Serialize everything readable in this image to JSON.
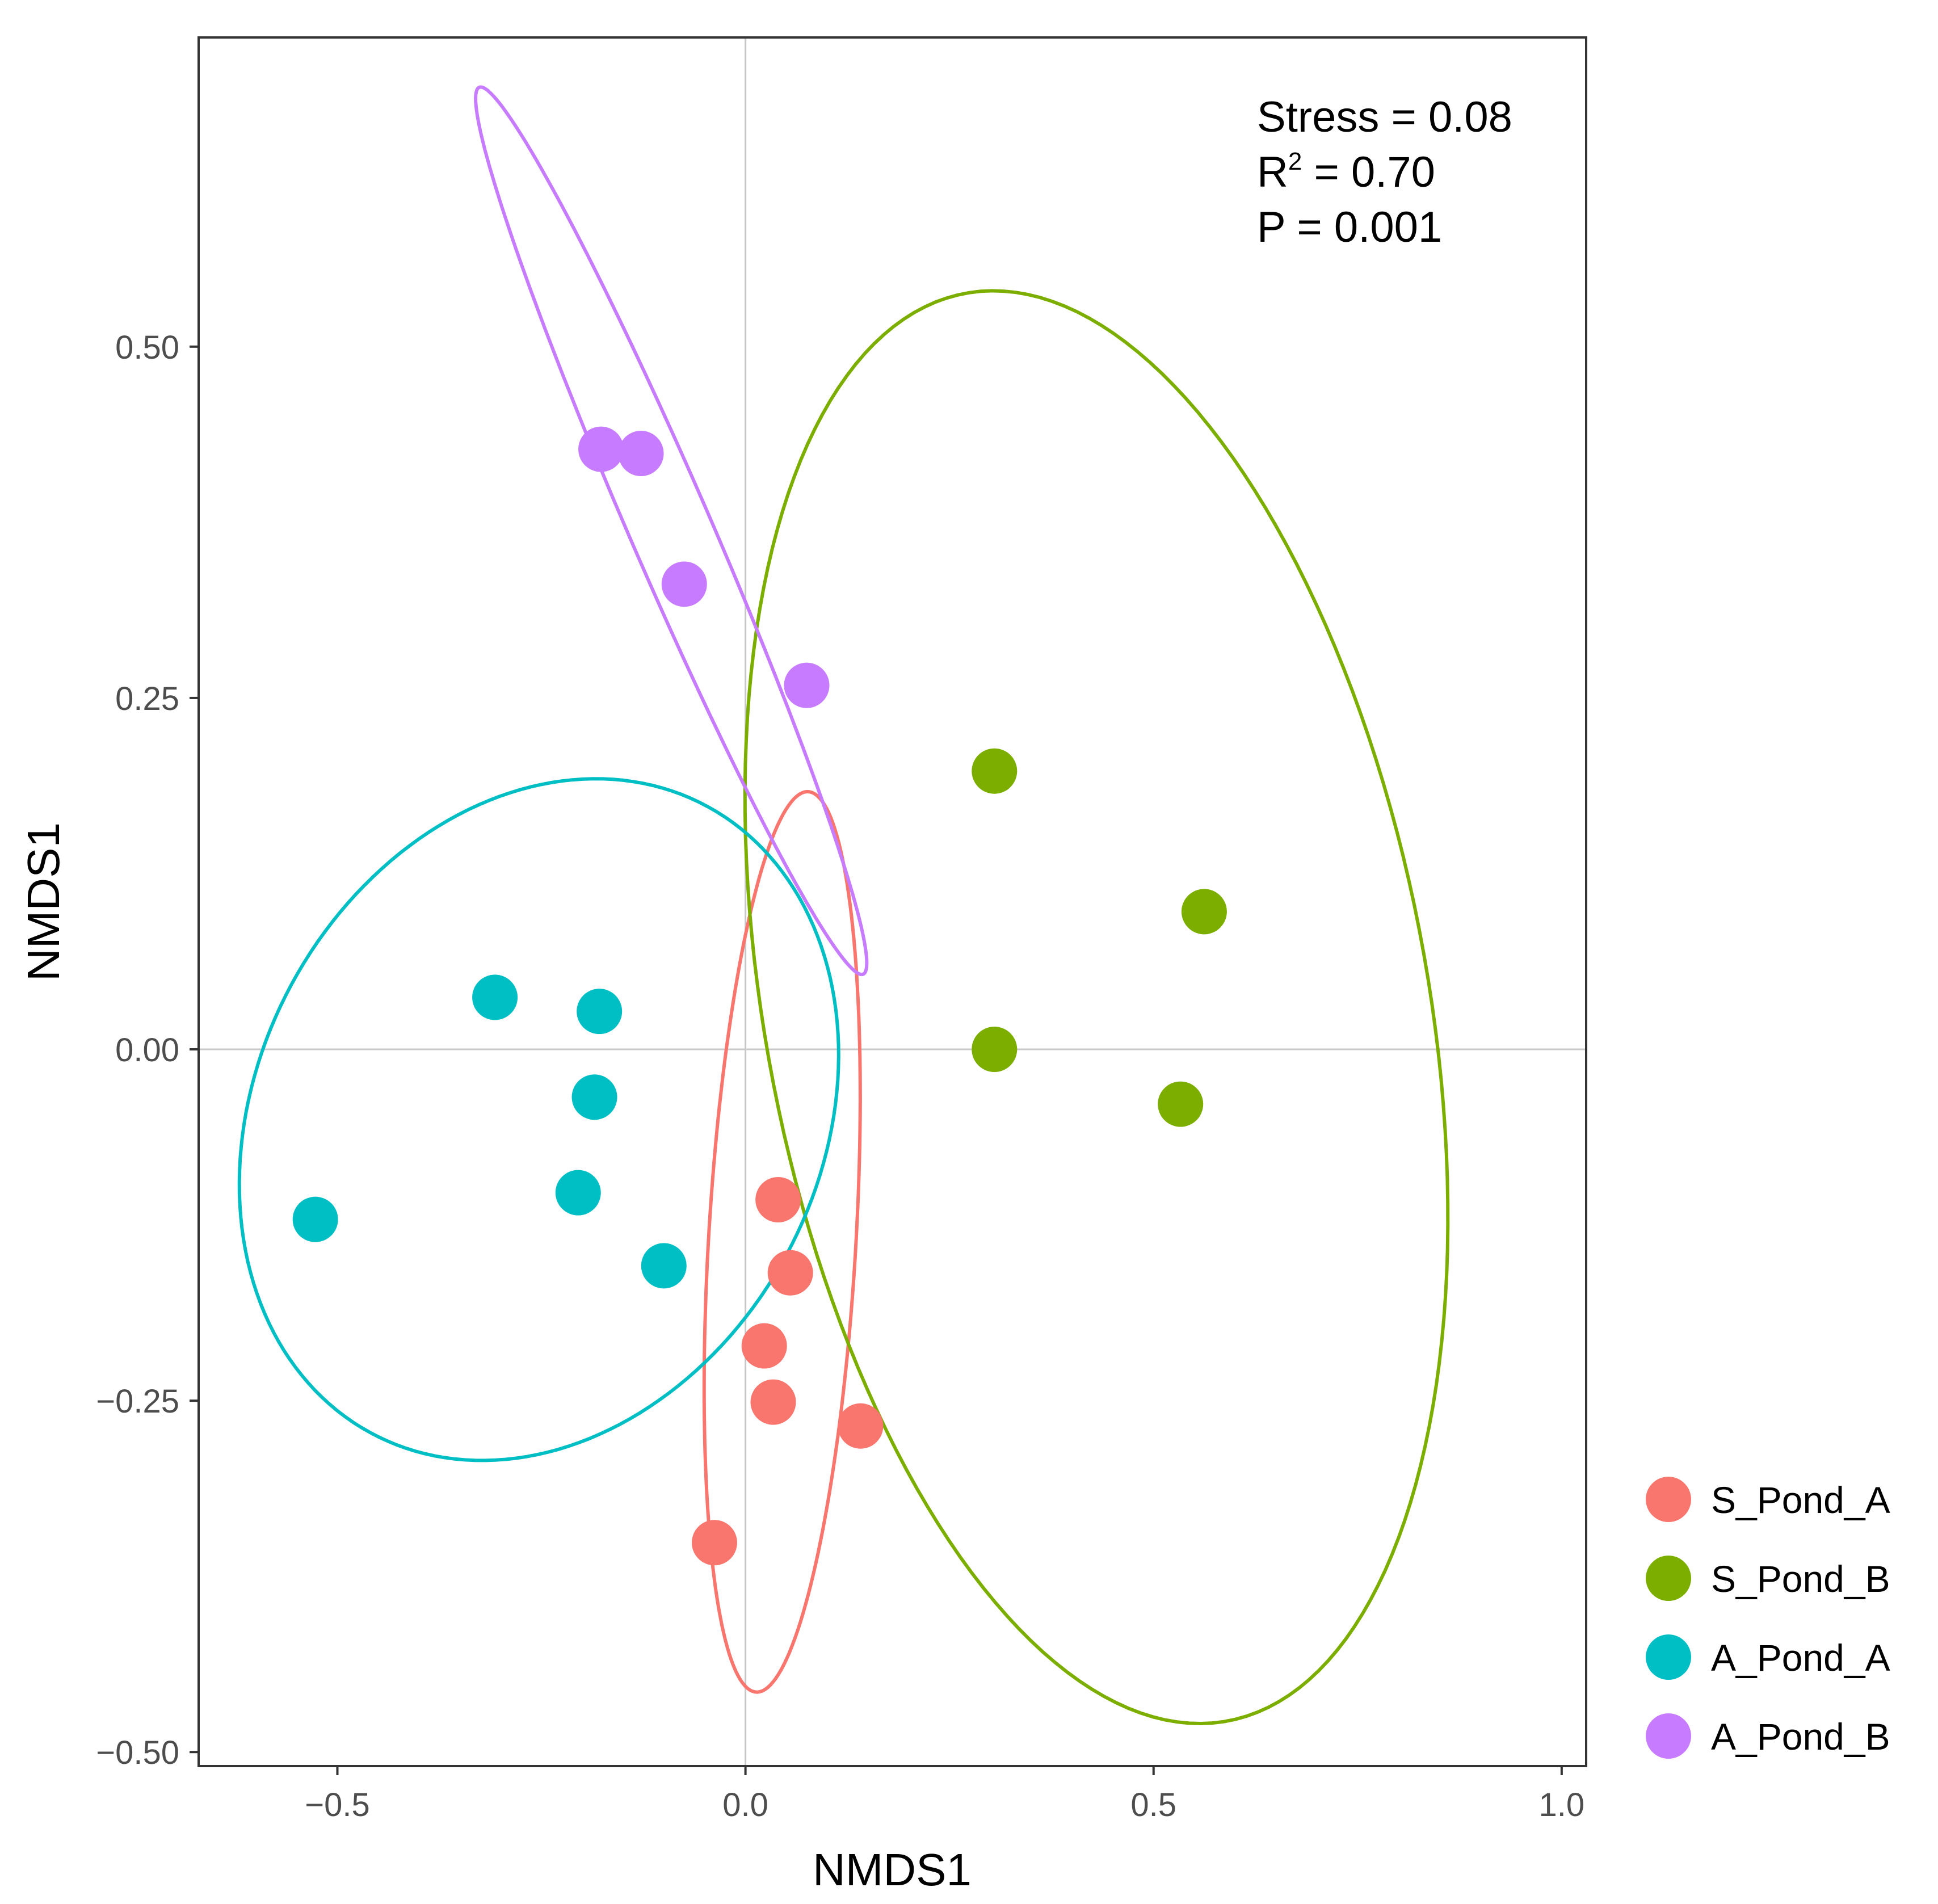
{
  "chart_data": {
    "type": "scatter",
    "xlabel": "NMDS1",
    "ylabel": "NMDS1",
    "xlim": [
      -0.67,
      1.03
    ],
    "ylim": [
      -0.51,
      0.72
    ],
    "x_ticks": [
      -0.5,
      0.0,
      0.5,
      1.0
    ],
    "x_tick_labels": [
      "−0.5",
      "0.0",
      "0.5",
      "1.0"
    ],
    "y_ticks": [
      -0.5,
      -0.25,
      0.0,
      0.25,
      0.5
    ],
    "y_tick_labels": [
      "−0.50",
      "−0.25",
      "0.00",
      "0.25",
      "0.50"
    ],
    "reference_lines": {
      "x": 0,
      "y": 0
    },
    "grid": false,
    "legend_position": "right",
    "annotations": {
      "stress": "Stress = 0.08",
      "r2_prefix": "R",
      "r2_sup": "2",
      "r2_value": " = 0.70",
      "p": "P = 0.001"
    },
    "series": [
      {
        "name": "S_Pond_A",
        "color": "#F8766D",
        "points": [
          [
            0.04,
            -0.107
          ],
          [
            0.055,
            -0.159
          ],
          [
            0.023,
            -0.211
          ],
          [
            0.034,
            -0.251
          ],
          [
            0.141,
            -0.268
          ],
          [
            -0.038,
            -0.351
          ]
        ],
        "ellipse": {
          "cx": 0.045,
          "cy": -0.137,
          "a": 0.322,
          "b": 0.09,
          "angle_deg": 84
        }
      },
      {
        "name": "S_Pond_B",
        "color": "#7CAE00",
        "points": [
          [
            0.305,
            0.198
          ],
          [
            0.562,
            0.098
          ],
          [
            0.305,
            0.0
          ],
          [
            0.533,
            -0.039
          ]
        ],
        "ellipse": {
          "cx": 0.43,
          "cy": 0.03,
          "a": 0.545,
          "b": 0.385,
          "angle_deg": -60
        }
      },
      {
        "name": "A_Pond_A",
        "color": "#00BFC4",
        "points": [
          [
            -0.307,
            0.037
          ],
          [
            -0.179,
            0.027
          ],
          [
            -0.185,
            -0.034
          ],
          [
            -0.205,
            -0.102
          ],
          [
            -0.527,
            -0.121
          ],
          [
            -0.1,
            -0.154
          ]
        ],
        "ellipse": {
          "cx": -0.253,
          "cy": -0.05,
          "a": 0.372,
          "b": 0.235,
          "angle_deg": 12
        }
      },
      {
        "name": "A_Pond_B",
        "color": "#C77CFF",
        "points": [
          [
            -0.177,
            0.427
          ],
          [
            -0.128,
            0.424
          ],
          [
            -0.075,
            0.331
          ],
          [
            0.075,
            0.259
          ]
        ],
        "ellipse": {
          "cx": -0.091,
          "cy": 0.369,
          "a": 0.394,
          "b": 0.0435,
          "angle_deg": -53
        }
      }
    ]
  }
}
